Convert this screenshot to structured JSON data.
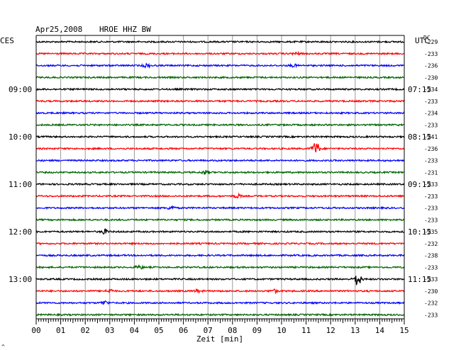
{
  "header": {
    "date": "Apr25,2008",
    "station": "HROE HHZ BW",
    "left_tz": "CES",
    "right_tz": "UTC",
    "dc_label": "DC"
  },
  "chart_data": {
    "type": "line",
    "title": "",
    "xlabel": "Zeit [min]",
    "ylabel": "",
    "xlim": [
      0,
      15
    ],
    "x_ticks": [
      "00",
      "01",
      "02",
      "03",
      "04",
      "05",
      "06",
      "07",
      "08",
      "09",
      "10",
      "11",
      "12",
      "13",
      "14",
      "15"
    ],
    "grid": true,
    "trace_colors": [
      "#000000",
      "#ff0000",
      "#0000ff",
      "#006400"
    ],
    "left_time_labels": [
      {
        "trace": 4,
        "text": "09:00"
      },
      {
        "trace": 8,
        "text": "10:00"
      },
      {
        "trace": 12,
        "text": "11:00"
      },
      {
        "trace": 16,
        "text": "12:00"
      },
      {
        "trace": 20,
        "text": "13:00"
      }
    ],
    "right_time_labels": [
      {
        "trace": 4,
        "text": "07:15"
      },
      {
        "trace": 8,
        "text": "08:15"
      },
      {
        "trace": 12,
        "text": "09:15"
      },
      {
        "trace": 16,
        "text": "10:15"
      },
      {
        "trace": 20,
        "text": "11:15"
      }
    ],
    "dc_offsets": [
      "-229",
      "-233",
      "-236",
      "-230",
      "-234",
      "-233",
      "-234",
      "-233",
      "-241",
      "-236",
      "-233",
      "-231",
      "-233",
      "-233",
      "-233",
      "-233",
      "-235",
      "-232",
      "-238",
      "-233",
      "-233",
      "-230",
      "-232",
      "-233"
    ],
    "events": [
      {
        "trace": 9,
        "minute": 11.4,
        "strength": 9
      },
      {
        "trace": 20,
        "minute": 13.1,
        "strength": 9
      },
      {
        "trace": 2,
        "minute": 4.5,
        "strength": 2.5
      },
      {
        "trace": 2,
        "minute": 10.5,
        "strength": 1.5
      },
      {
        "trace": 13,
        "minute": 8.2,
        "strength": 2.5
      },
      {
        "trace": 14,
        "minute": 5.5,
        "strength": 2.5
      },
      {
        "trace": 16,
        "minute": 2.8,
        "strength": 3
      },
      {
        "trace": 19,
        "minute": 4.2,
        "strength": 2.5
      },
      {
        "trace": 21,
        "minute": 3.0,
        "strength": 2.5
      },
      {
        "trace": 21,
        "minute": 6.6,
        "strength": 2
      },
      {
        "trace": 21,
        "minute": 9.7,
        "strength": 2
      },
      {
        "trace": 22,
        "minute": 2.8,
        "strength": 2.5
      },
      {
        "trace": 11,
        "minute": 6.9,
        "strength": 2.5
      },
      {
        "trace": 1,
        "minute": 10.6,
        "strength": 1.5
      }
    ]
  },
  "footer": {
    "corner_mark": "^"
  }
}
